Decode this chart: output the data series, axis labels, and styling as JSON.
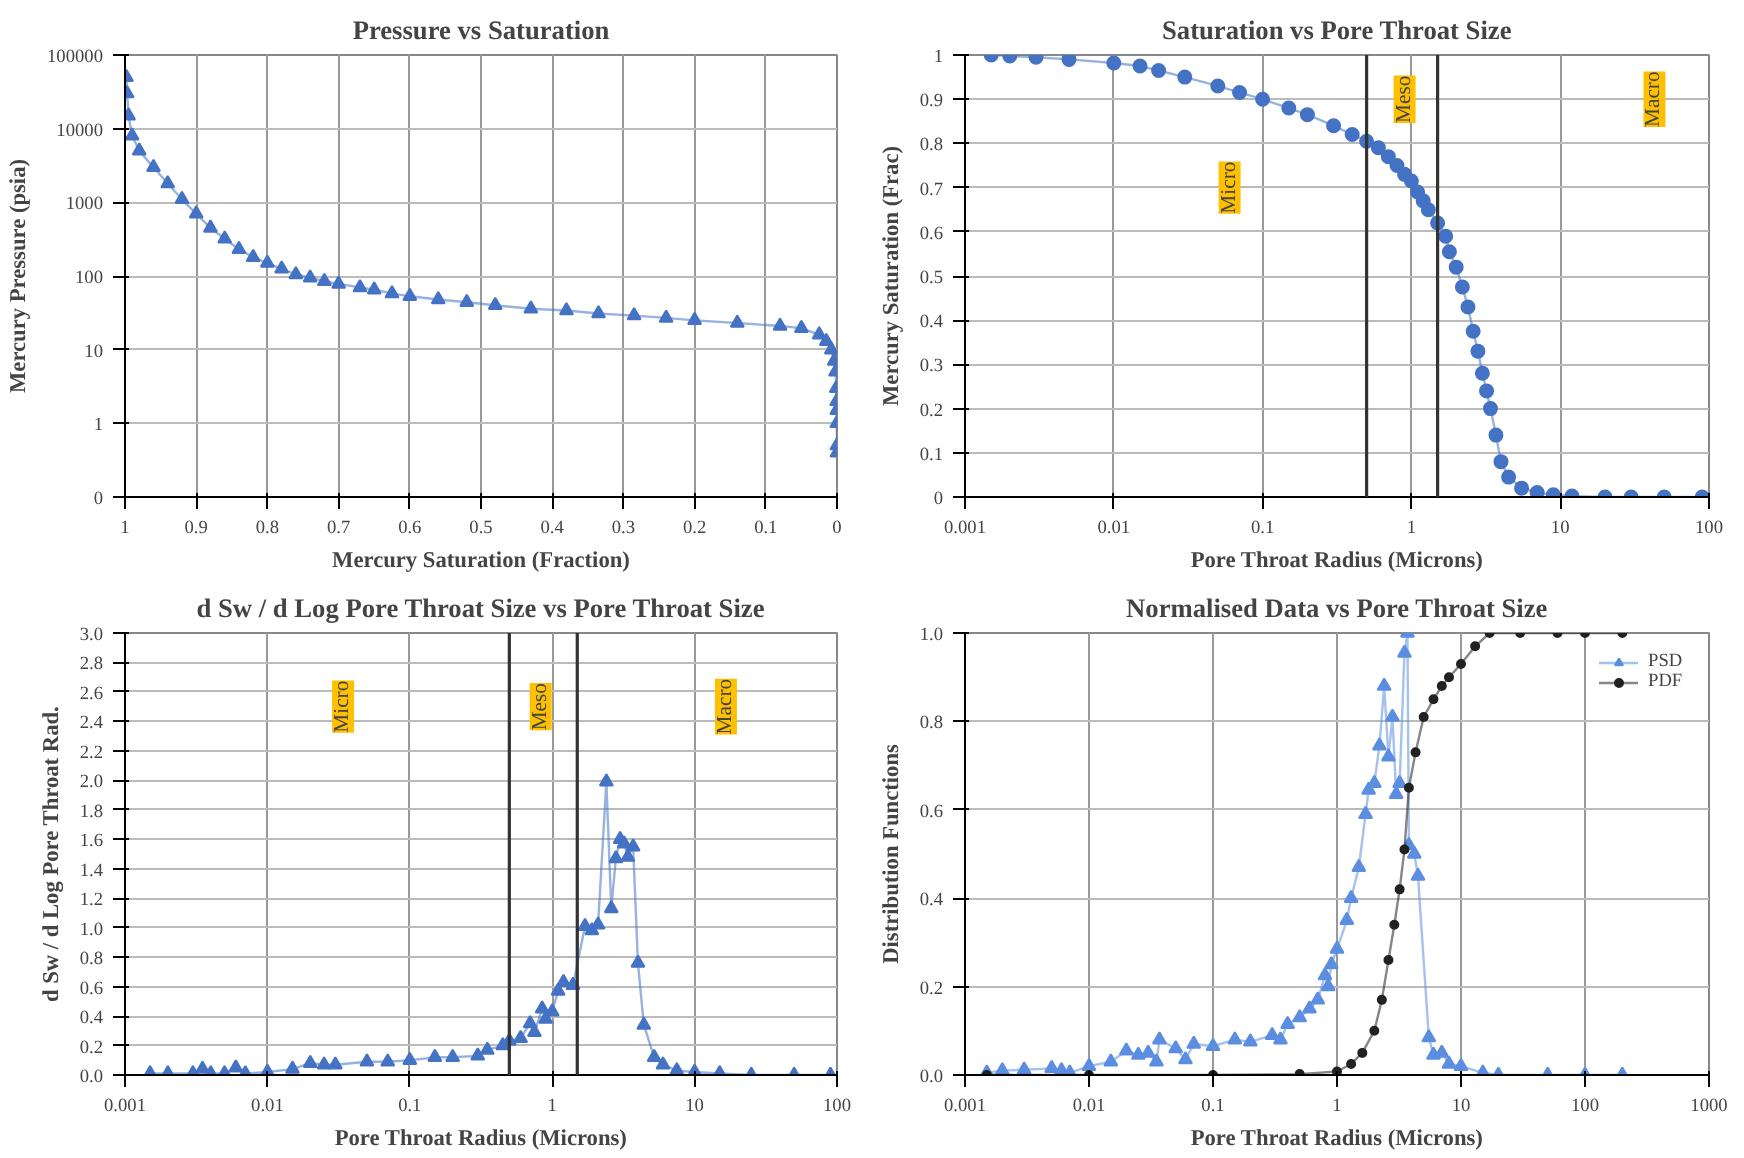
{
  "chart_data": [
    {
      "type": "line",
      "title": "Pressure vs Saturation",
      "xlabel": "Mercury Saturation (Fraction)",
      "ylabel": "Mercury Pressure (psia)",
      "log": "y",
      "grid": true,
      "marker": "triangle",
      "xlim": [
        1,
        0
      ],
      "xticks": [
        1,
        0.9,
        0.8,
        0.7,
        0.6,
        0.5,
        0.4,
        0.3,
        0.2,
        0.1,
        0
      ],
      "ylim": [
        0.1,
        100000
      ],
      "yticks": [
        {
          "value": 0.1,
          "label": "0"
        },
        1,
        10,
        100,
        1000,
        10000,
        100000
      ],
      "series": [
        {
          "color": "#4472c4",
          "x": [
            0.998,
            0.997,
            0.995,
            0.99,
            0.98,
            0.96,
            0.94,
            0.92,
            0.9,
            0.88,
            0.86,
            0.84,
            0.82,
            0.8,
            0.78,
            0.76,
            0.74,
            0.72,
            0.7,
            0.67,
            0.65,
            0.625,
            0.6,
            0.56,
            0.52,
            0.48,
            0.43,
            0.38,
            0.335,
            0.285,
            0.24,
            0.2,
            0.14,
            0.08,
            0.05,
            0.025,
            0.015,
            0.008,
            0.004,
            0.002,
            0.001,
            0.0005,
            0.0003,
            0.0002,
            0.0001,
            5e-05
          ],
          "values": [
            50000,
            30000,
            15000,
            8000,
            5000,
            3000,
            1800,
            1100,
            700,
            450,
            320,
            230,
            180,
            150,
            125,
            105,
            95,
            85,
            78,
            70,
            65,
            58,
            53,
            48,
            44,
            40,
            36,
            34,
            31,
            29,
            27,
            25,
            23,
            21,
            19.5,
            16,
            13,
            10,
            7,
            5,
            3,
            2,
            1.5,
            1,
            0.5,
            0.4
          ]
        }
      ]
    },
    {
      "type": "line",
      "title": "Saturation vs Pore Throat Size",
      "xlabel": "Pore Throat Radius (Microns)",
      "ylabel": "Mercury Saturation (Frac)",
      "log": "x",
      "grid": true,
      "marker": "circle",
      "xlim": [
        0.001,
        100
      ],
      "xticks": [
        0.001,
        0.01,
        0.1,
        1,
        10,
        100
      ],
      "ylim": [
        0,
        1
      ],
      "yticks": [
        0,
        0.1,
        0.2,
        0.3,
        0.4,
        0.5,
        0.6,
        0.7,
        0.8,
        0.9,
        1
      ],
      "ref_lines": [
        {
          "axis": "x",
          "value": 0.5
        },
        {
          "axis": "x",
          "value": 1.5
        }
      ],
      "annotations": [
        {
          "text": "Micro",
          "x": 0.06,
          "y": 0.7
        },
        {
          "text": "Meso",
          "x": 0.9,
          "y": 0.9
        },
        {
          "text": "Macro",
          "x": 43,
          "y": 0.9
        }
      ],
      "series": [
        {
          "color": "#4472c4",
          "x": [
            0.0015,
            0.002,
            0.003,
            0.005,
            0.01,
            0.015,
            0.02,
            0.03,
            0.05,
            0.07,
            0.1,
            0.15,
            0.2,
            0.3,
            0.4,
            0.5,
            0.6,
            0.7,
            0.8,
            0.9,
            1.0,
            1.1,
            1.2,
            1.3,
            1.5,
            1.7,
            1.8,
            2.0,
            2.2,
            2.4,
            2.6,
            2.8,
            3.0,
            3.2,
            3.4,
            3.7,
            4.0,
            4.5,
            5.5,
            7,
            9,
            12,
            20,
            30,
            50,
            90
          ],
          "values": [
            1.0,
            0.998,
            0.995,
            0.99,
            0.982,
            0.975,
            0.965,
            0.95,
            0.93,
            0.915,
            0.9,
            0.88,
            0.865,
            0.84,
            0.82,
            0.805,
            0.79,
            0.77,
            0.75,
            0.73,
            0.715,
            0.69,
            0.67,
            0.65,
            0.62,
            0.59,
            0.555,
            0.52,
            0.475,
            0.43,
            0.375,
            0.33,
            0.28,
            0.24,
            0.2,
            0.14,
            0.08,
            0.045,
            0.02,
            0.01,
            0.005,
            0.002,
            0.0,
            0.0,
            0.0,
            0.0
          ]
        }
      ]
    },
    {
      "type": "line",
      "title": "d Sw / d Log Pore Throat Size vs Pore Throat Size",
      "xlabel": "Pore Throat Radius (Microns)",
      "ylabel": "d Sw / d Log Pore Throat Rad.",
      "log": "x",
      "grid": true,
      "marker": "triangle",
      "xlim": [
        0.001,
        100
      ],
      "xticks": [
        0.001,
        0.01,
        0.1,
        1,
        10,
        100
      ],
      "ylim": [
        0,
        3
      ],
      "yticks": [
        {
          "value": 0,
          "label": "0.0"
        },
        {
          "value": 0.2,
          "label": "0.2"
        },
        {
          "value": 0.4,
          "label": "0.4"
        },
        {
          "value": 0.6,
          "label": "0.6"
        },
        {
          "value": 0.8,
          "label": "0.8"
        },
        {
          "value": 1,
          "label": "1.0"
        },
        {
          "value": 1.2,
          "label": "1.2"
        },
        {
          "value": 1.4,
          "label": "1.4"
        },
        {
          "value": 1.6,
          "label": "1.6"
        },
        {
          "value": 1.8,
          "label": "1.8"
        },
        {
          "value": 2,
          "label": "2.0"
        },
        {
          "value": 2.2,
          "label": "2.2"
        },
        {
          "value": 2.4,
          "label": "2.4"
        },
        {
          "value": 2.6,
          "label": "2.6"
        },
        {
          "value": 2.8,
          "label": "2.8"
        },
        {
          "value": 3,
          "label": "3.0"
        }
      ],
      "ref_lines": [
        {
          "axis": "x",
          "value": 0.5
        },
        {
          "axis": "x",
          "value": 1.5
        }
      ],
      "annotations": [
        {
          "text": "Micro",
          "x": 0.034,
          "y": 2.5
        },
        {
          "text": "Meso",
          "x": 0.83,
          "y": 2.5
        },
        {
          "text": "Macro",
          "x": 16.6,
          "y": 2.5
        }
      ],
      "series": [
        {
          "color": "#4472c4",
          "x": [
            0.0015,
            0.002,
            0.003,
            0.0035,
            0.004,
            0.005,
            0.006,
            0.007,
            0.01,
            0.015,
            0.02,
            0.025,
            0.03,
            0.05,
            0.07,
            0.1,
            0.15,
            0.2,
            0.3,
            0.35,
            0.45,
            0.5,
            0.6,
            0.7,
            0.75,
            0.85,
            0.9,
            1.0,
            1.1,
            1.2,
            1.4,
            1.7,
            1.9,
            2.1,
            2.4,
            2.6,
            2.8,
            3.0,
            3.2,
            3.4,
            3.7,
            4.0,
            4.4,
            5.2,
            6,
            7.5,
            10,
            15,
            25,
            50,
            90
          ],
          "values": [
            0.01,
            0.01,
            0.01,
            0.04,
            0.01,
            0.01,
            0.05,
            0.01,
            0.02,
            0.04,
            0.08,
            0.07,
            0.07,
            0.09,
            0.09,
            0.1,
            0.12,
            0.12,
            0.13,
            0.17,
            0.2,
            0.23,
            0.25,
            0.35,
            0.29,
            0.45,
            0.38,
            0.43,
            0.57,
            0.63,
            0.61,
            1.01,
            0.98,
            1.02,
            1.99,
            1.13,
            1.47,
            1.6,
            1.57,
            1.48,
            1.55,
            0.76,
            0.34,
            0.12,
            0.07,
            0.03,
            0.02,
            0.01,
            0.0,
            0.0,
            0.0
          ]
        }
      ]
    },
    {
      "type": "line",
      "title": "Normalised Data vs Pore Throat Size",
      "xlabel": "Pore Throat Radius (Microns)",
      "ylabel": "Distribution Functions",
      "log": "x",
      "grid": true,
      "legend": "top right",
      "xlim": [
        0.001,
        1000
      ],
      "xticks": [
        0.001,
        0.01,
        0.1,
        1,
        10,
        100,
        1000
      ],
      "ylim": [
        0,
        1
      ],
      "yticks": [
        {
          "value": 0,
          "label": "0.0"
        },
        {
          "value": 0.2,
          "label": "0.2"
        },
        {
          "value": 0.4,
          "label": "0.4"
        },
        {
          "value": 0.6,
          "label": "0.6"
        },
        {
          "value": 0.8,
          "label": "0.8"
        },
        {
          "value": 1,
          "label": "1.0"
        }
      ],
      "series": [
        {
          "name": "PSD",
          "color": "#5b8ee0",
          "marker": "triangle",
          "x": [
            0.0015,
            0.002,
            0.003,
            0.005,
            0.006,
            0.007,
            0.01,
            0.015,
            0.02,
            0.025,
            0.03,
            0.035,
            0.037,
            0.05,
            0.06,
            0.07,
            0.1,
            0.15,
            0.2,
            0.3,
            0.35,
            0.4,
            0.5,
            0.6,
            0.7,
            0.8,
            0.85,
            0.9,
            1.0,
            1.2,
            1.3,
            1.5,
            1.7,
            1.8,
            2.0,
            2.2,
            2.4,
            2.6,
            2.8,
            3.0,
            3.2,
            3.5,
            3.7,
            3.8,
            4.2,
            4.5,
            5.5,
            6,
            7,
            8,
            10,
            15,
            20,
            50,
            100,
            200
          ],
          "values": [
            0.005,
            0.01,
            0.012,
            0.015,
            0.01,
            0.005,
            0.02,
            0.03,
            0.055,
            0.045,
            0.05,
            0.03,
            0.08,
            0.06,
            0.035,
            0.07,
            0.065,
            0.08,
            0.075,
            0.09,
            0.08,
            0.115,
            0.13,
            0.15,
            0.17,
            0.225,
            0.2,
            0.25,
            0.285,
            0.35,
            0.4,
            0.47,
            0.59,
            0.645,
            0.66,
            0.745,
            0.88,
            0.72,
            0.81,
            0.635,
            0.66,
            0.955,
            1.0,
            0.52,
            0.5,
            0.45,
            0.085,
            0.045,
            0.05,
            0.025,
            0.02,
            0.005,
            0.0,
            0.0,
            0.0,
            0.0
          ]
        },
        {
          "name": "PDF",
          "color": "#222222",
          "marker": "circle",
          "x": [
            0.0015,
            0.01,
            0.1,
            0.5,
            1.0,
            1.3,
            1.6,
            2.0,
            2.3,
            2.6,
            2.9,
            3.2,
            3.5,
            3.8,
            4.3,
            5.0,
            6,
            7,
            8,
            10,
            13,
            17,
            30,
            60,
            100,
            200
          ],
          "values": [
            0.0,
            0.0,
            0.0,
            0.002,
            0.008,
            0.025,
            0.05,
            0.1,
            0.17,
            0.26,
            0.34,
            0.42,
            0.51,
            0.65,
            0.73,
            0.81,
            0.85,
            0.88,
            0.9,
            0.93,
            0.97,
            1.0,
            1.0,
            1.0,
            1.0,
            1.0
          ]
        }
      ]
    }
  ]
}
